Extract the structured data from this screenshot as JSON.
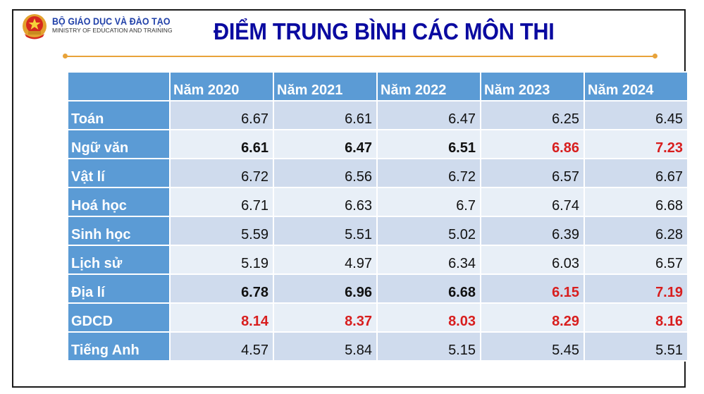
{
  "header": {
    "org_name": "BỘ GIÁO DỤC VÀ ĐÀO TẠO",
    "org_subtitle": "MINISTRY OF EDUCATION AND TRAINING",
    "emblem_icon": "national-emblem-icon"
  },
  "title": "ĐIỂM TRUNG BÌNH CÁC MÔN THI",
  "colors": {
    "title": "#0a0aa0",
    "header_fill": "#5b9bd5",
    "row_odd": "#cfdbed",
    "row_even": "#e8eff7",
    "highlight_red": "#d81e1e",
    "accent_rule": "#e8a33a"
  },
  "table": {
    "columns": [
      "",
      "Năm 2020",
      "Năm 2021",
      "Năm 2022",
      "Năm 2023",
      "Năm 2024"
    ],
    "rows": [
      {
        "subject": "Toán",
        "values": [
          "6.67",
          "6.61",
          "6.47",
          "6.25",
          "6.45"
        ],
        "styles": [
          "",
          "",
          "",
          "",
          ""
        ]
      },
      {
        "subject": "Ngữ văn",
        "values": [
          "6.61",
          "6.47",
          "6.51",
          "6.86",
          "7.23"
        ],
        "styles": [
          "bold",
          "bold",
          "bold",
          "red",
          "red"
        ]
      },
      {
        "subject": "Vật lí",
        "values": [
          "6.72",
          "6.56",
          "6.72",
          "6.57",
          "6.67"
        ],
        "styles": [
          "",
          "",
          "",
          "",
          ""
        ]
      },
      {
        "subject": "Hoá học",
        "values": [
          "6.71",
          "6.63",
          "6.7",
          "6.74",
          "6.68"
        ],
        "styles": [
          "",
          "",
          "",
          "",
          ""
        ]
      },
      {
        "subject": "Sinh học",
        "values": [
          "5.59",
          "5.51",
          "5.02",
          "6.39",
          "6.28"
        ],
        "styles": [
          "",
          "",
          "",
          "",
          ""
        ]
      },
      {
        "subject": "Lịch sử",
        "values": [
          "5.19",
          "4.97",
          "6.34",
          "6.03",
          "6.57"
        ],
        "styles": [
          "",
          "",
          "",
          "",
          ""
        ]
      },
      {
        "subject": "Địa lí",
        "values": [
          "6.78",
          "6.96",
          "6.68",
          "6.15",
          "7.19"
        ],
        "styles": [
          "bold",
          "bold",
          "bold",
          "red",
          "red"
        ]
      },
      {
        "subject": "GDCD",
        "values": [
          "8.14",
          "8.37",
          "8.03",
          "8.29",
          "8.16"
        ],
        "styles": [
          "red",
          "red",
          "red",
          "red",
          "red"
        ]
      },
      {
        "subject": "Tiếng Anh",
        "values": [
          "4.57",
          "5.84",
          "5.15",
          "5.45",
          "5.51"
        ],
        "styles": [
          "",
          "",
          "",
          "",
          ""
        ]
      }
    ]
  }
}
